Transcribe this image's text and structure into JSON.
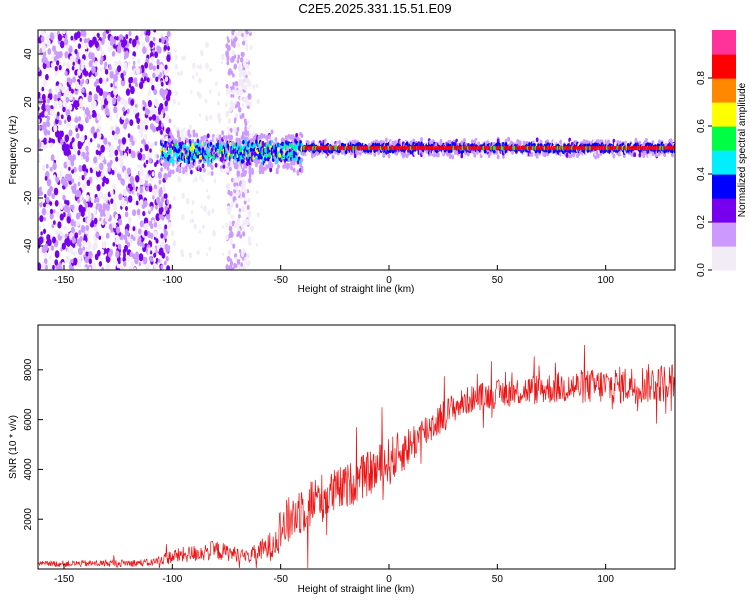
{
  "title": "C2E5.2025.331.15.51.E09",
  "chart_data": [
    {
      "type": "heatmap",
      "xlabel": "Height of straight line (km)",
      "ylabel": "Frequency (Hz)",
      "xlim": [
        -162,
        132
      ],
      "ylim": [
        -50,
        50
      ],
      "x_ticks": [
        -150,
        -100,
        -50,
        0,
        50,
        100
      ],
      "x_tick_labels": [
        "-150",
        "-100",
        "-50",
        "0",
        "50",
        "100"
      ],
      "y_ticks": [
        -40,
        -20,
        0,
        20,
        40
      ],
      "y_tick_labels": [
        "-40",
        "-20",
        "0",
        "20",
        "40"
      ],
      "noise_region_x": [
        -162,
        -101
      ],
      "noise_band_x": [
        -75,
        -64
      ],
      "signal_onset_x": -105,
      "signal_line_freq": 0.8,
      "colorbar": {
        "label": "Normalized spectral amplitude",
        "range": [
          0,
          1
        ],
        "ticks": [
          0.0,
          0.2,
          0.4,
          0.6,
          0.8
        ],
        "tick_labels": [
          "0.0",
          "0.2",
          "0.4",
          "0.6",
          "0.8"
        ],
        "colors": [
          "#f2ecf6",
          "#cc99ff",
          "#7700ee",
          "#0000ff",
          "#00eeff",
          "#00ff44",
          "#ffff00",
          "#ff8800",
          "#ff0000",
          "#ff3399"
        ]
      }
    },
    {
      "type": "line",
      "xlabel": "Height of straight line (km)",
      "ylabel": "SNR (10 * v/v)",
      "xlim": [
        -162,
        132
      ],
      "ylim": [
        0,
        9800
      ],
      "x_ticks": [
        -150,
        -100,
        -50,
        0,
        50,
        100
      ],
      "x_tick_labels": [
        "-150",
        "-100",
        "-50",
        "0",
        "50",
        "100"
      ],
      "y_ticks": [
        2000,
        4000,
        6000,
        8000
      ],
      "y_tick_labels": [
        "2000",
        "4000",
        "6000",
        "8000"
      ],
      "series_color": "#ee1111",
      "trend": {
        "x": [
          -162,
          -110,
          -100,
          -80,
          -65,
          -55,
          -50,
          -40,
          -30,
          -20,
          -10,
          0,
          10,
          20,
          30,
          40,
          60,
          80,
          100,
          110,
          120,
          132
        ],
        "y": [
          200,
          250,
          500,
          750,
          500,
          900,
          1600,
          2500,
          2900,
          3300,
          3800,
          4300,
          5000,
          5800,
          6500,
          6900,
          7150,
          7300,
          7350,
          7400,
          7450,
          7500
        ]
      },
      "noise_amplitude": {
        "x": [
          -162,
          -110,
          -100,
          -80,
          -65,
          -55,
          -50,
          -40,
          -30,
          -20,
          -10,
          0,
          10,
          20,
          30,
          40,
          60,
          80,
          100,
          120,
          132
        ],
        "y": [
          120,
          150,
          300,
          400,
          250,
          600,
          900,
          1100,
          1000,
          900,
          900,
          1000,
          800,
          700,
          600,
          550,
          600,
          650,
          750,
          800,
          800
        ]
      }
    }
  ]
}
